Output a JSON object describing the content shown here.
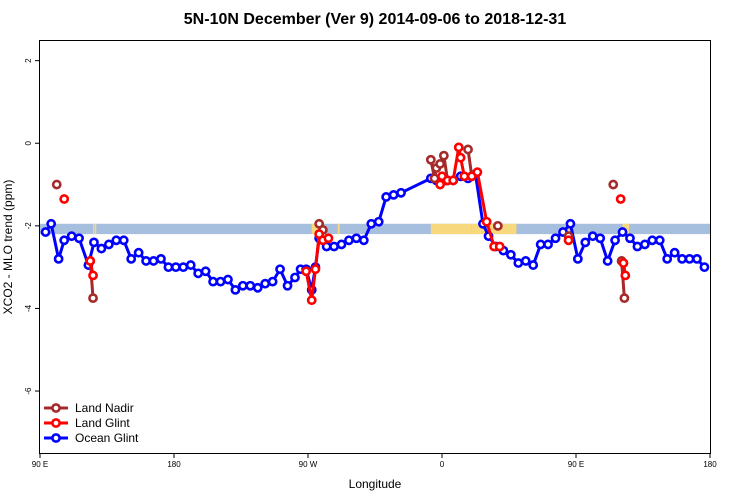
{
  "chart_data": {
    "type": "line",
    "title": "5N-10N December (Ver 9)   2014-09-06 to 2018-12-31",
    "xlabel": "Longitude",
    "ylabel": "XCO2 - MLO trend (ppm)",
    "xlim": [
      90,
      450
    ],
    "ylim": [
      -7.5,
      2.5
    ],
    "x_ticks": [
      {
        "value": 90,
        "label": "90 E"
      },
      {
        "value": 162,
        "label": "180"
      },
      {
        "value": 234,
        "label": "90 W"
      },
      {
        "value": 306,
        "label": "0"
      },
      {
        "value": 378,
        "label": "90 E"
      },
      {
        "value": 450,
        "label": "180"
      }
    ],
    "y_ticks": [
      {
        "value": 2,
        "label": "2"
      },
      {
        "value": 0,
        "label": "0"
      },
      {
        "value": -2,
        "label": "-2"
      },
      {
        "value": -4,
        "label": "-4"
      },
      {
        "value": -6,
        "label": "-6"
      }
    ],
    "band": {
      "y_min": -2.2,
      "y_max": -1.95,
      "color": "#a7bfdf"
    },
    "land_color": "#f7d87c",
    "land_segments": [
      [
        118.5,
        119.2
      ],
      [
        119.5,
        120.2
      ],
      [
        236,
        242
      ],
      [
        250,
        251
      ],
      [
        300,
        322
      ],
      [
        322,
        346
      ],
      [
        372,
        374
      ],
      [
        373.5,
        374.5
      ],
      [
        403,
        406.5
      ]
    ],
    "legend": {
      "position": "bottom-left",
      "entries": [
        {
          "name": "Land Nadir",
          "color": "#a52a2a"
        },
        {
          "name": "Land Glint",
          "color": "#ff0000"
        },
        {
          "name": "Ocean Glint",
          "color": "#0000ff"
        }
      ]
    },
    "series": [
      {
        "name": "Land Nadir",
        "color": "#a52a2a",
        "segments": [
          [
            [
              99,
              -1.0
            ]
          ],
          [
            [
              117,
              -2.85
            ],
            [
              118.5,
              -3.75
            ]
          ],
          [
            [
              240,
              -1.95
            ],
            [
              242,
              -2.1
            ]
          ],
          [
            [
              300,
              -0.4
            ],
            [
              302,
              -0.85
            ],
            [
              303,
              -0.6
            ],
            [
              305,
              -0.5
            ],
            [
              307,
              -0.3
            ],
            [
              309,
              -0.9
            ]
          ],
          [
            [
              320,
              -0.15
            ],
            [
              322,
              -0.8
            ]
          ],
          [
            [
              336,
              -2.0
            ]
          ],
          [
            [
              374,
              -2.25
            ]
          ],
          [
            [
              398,
              -1.0
            ]
          ],
          [
            [
              402.5,
              -2.85
            ],
            [
              404,
              -3.75
            ]
          ]
        ]
      },
      {
        "name": "Land Glint",
        "color": "#ff0000",
        "segments": [
          [
            [
              103,
              -1.35
            ]
          ],
          [
            [
              117,
              -2.85
            ],
            [
              118.5,
              -3.2
            ]
          ],
          [
            [
              233,
              -3.1
            ],
            [
              236,
              -3.8
            ],
            [
              238,
              -3.05
            ],
            [
              240,
              -2.2
            ],
            [
              242,
              -2.35
            ],
            [
              245,
              -2.3
            ]
          ],
          [
            [
              305,
              -1.0
            ],
            [
              306,
              -0.8
            ],
            [
              309,
              -0.9
            ],
            [
              312,
              -0.9
            ],
            [
              315,
              -0.1
            ],
            [
              316,
              -0.35
            ],
            [
              318,
              -0.8
            ],
            [
              322,
              -0.8
            ],
            [
              325,
              -0.7
            ],
            [
              330,
              -1.9
            ],
            [
              334,
              -2.5
            ],
            [
              337,
              -2.5
            ]
          ],
          [
            [
              374,
              -2.35
            ]
          ],
          [
            [
              402,
              -1.35
            ]
          ],
          [
            [
              403.5,
              -2.9
            ],
            [
              404.5,
              -3.2
            ]
          ]
        ]
      },
      {
        "name": "Ocean Glint",
        "color": "#0000ff",
        "segments": [
          [
            [
              93,
              -2.15
            ],
            [
              96,
              -1.95
            ],
            [
              100,
              -2.8
            ],
            [
              103,
              -2.35
            ],
            [
              107,
              -2.25
            ],
            [
              111,
              -2.3
            ],
            [
              116,
              -2.95
            ],
            [
              119,
              -2.4
            ],
            [
              123,
              -2.55
            ],
            [
              127,
              -2.45
            ],
            [
              131,
              -2.35
            ],
            [
              135,
              -2.35
            ],
            [
              139,
              -2.8
            ],
            [
              143,
              -2.65
            ],
            [
              147,
              -2.85
            ],
            [
              151,
              -2.85
            ],
            [
              155,
              -2.8
            ],
            [
              159,
              -3.0
            ],
            [
              163,
              -3.0
            ],
            [
              167,
              -3.0
            ],
            [
              171,
              -2.95
            ],
            [
              175,
              -3.15
            ],
            [
              179,
              -3.1
            ],
            [
              183,
              -3.35
            ],
            [
              187,
              -3.35
            ],
            [
              191,
              -3.3
            ],
            [
              195,
              -3.55
            ],
            [
              199,
              -3.45
            ],
            [
              203,
              -3.45
            ],
            [
              207,
              -3.5
            ],
            [
              211,
              -3.4
            ],
            [
              215,
              -3.35
            ],
            [
              219,
              -3.05
            ],
            [
              223,
              -3.45
            ],
            [
              227,
              -3.25
            ],
            [
              230,
              -3.05
            ],
            [
              233,
              -3.05
            ],
            [
              236,
              -3.55
            ],
            [
              238,
              -3.0
            ],
            [
              240,
              -2.3
            ],
            [
              244,
              -2.5
            ],
            [
              248,
              -2.5
            ],
            [
              252,
              -2.45
            ],
            [
              256,
              -2.35
            ],
            [
              260,
              -2.3
            ],
            [
              264,
              -2.35
            ],
            [
              268,
              -1.95
            ],
            [
              272,
              -1.9
            ],
            [
              276,
              -1.3
            ],
            [
              280,
              -1.25
            ],
            [
              284,
              -1.2
            ],
            [
              300,
              -0.85
            ],
            [
              303,
              -0.9
            ],
            [
              306,
              -0.85
            ],
            [
              308,
              -0.9
            ],
            [
              312,
              -0.9
            ],
            [
              316,
              -0.8
            ],
            [
              320,
              -0.85
            ],
            [
              324,
              -0.75
            ],
            [
              328,
              -1.95
            ],
            [
              331,
              -2.25
            ],
            [
              335,
              -2.5
            ],
            [
              339,
              -2.6
            ],
            [
              343,
              -2.7
            ],
            [
              347,
              -2.9
            ],
            [
              351,
              -2.85
            ],
            [
              355,
              -2.95
            ],
            [
              359,
              -2.45
            ],
            [
              363,
              -2.45
            ],
            [
              367,
              -2.3
            ],
            [
              371,
              -2.15
            ],
            [
              375,
              -1.95
            ],
            [
              379,
              -2.8
            ],
            [
              383,
              -2.4
            ],
            [
              387,
              -2.25
            ],
            [
              391,
              -2.3
            ],
            [
              395,
              -2.85
            ],
            [
              399,
              -2.35
            ],
            [
              403,
              -2.15
            ],
            [
              407,
              -2.3
            ],
            [
              411,
              -2.5
            ],
            [
              415,
              -2.45
            ],
            [
              419,
              -2.35
            ],
            [
              423,
              -2.35
            ],
            [
              427,
              -2.8
            ],
            [
              431,
              -2.65
            ],
            [
              435,
              -2.8
            ],
            [
              439,
              -2.8
            ],
            [
              443,
              -2.8
            ],
            [
              447,
              -3.0
            ]
          ]
        ]
      }
    ]
  }
}
